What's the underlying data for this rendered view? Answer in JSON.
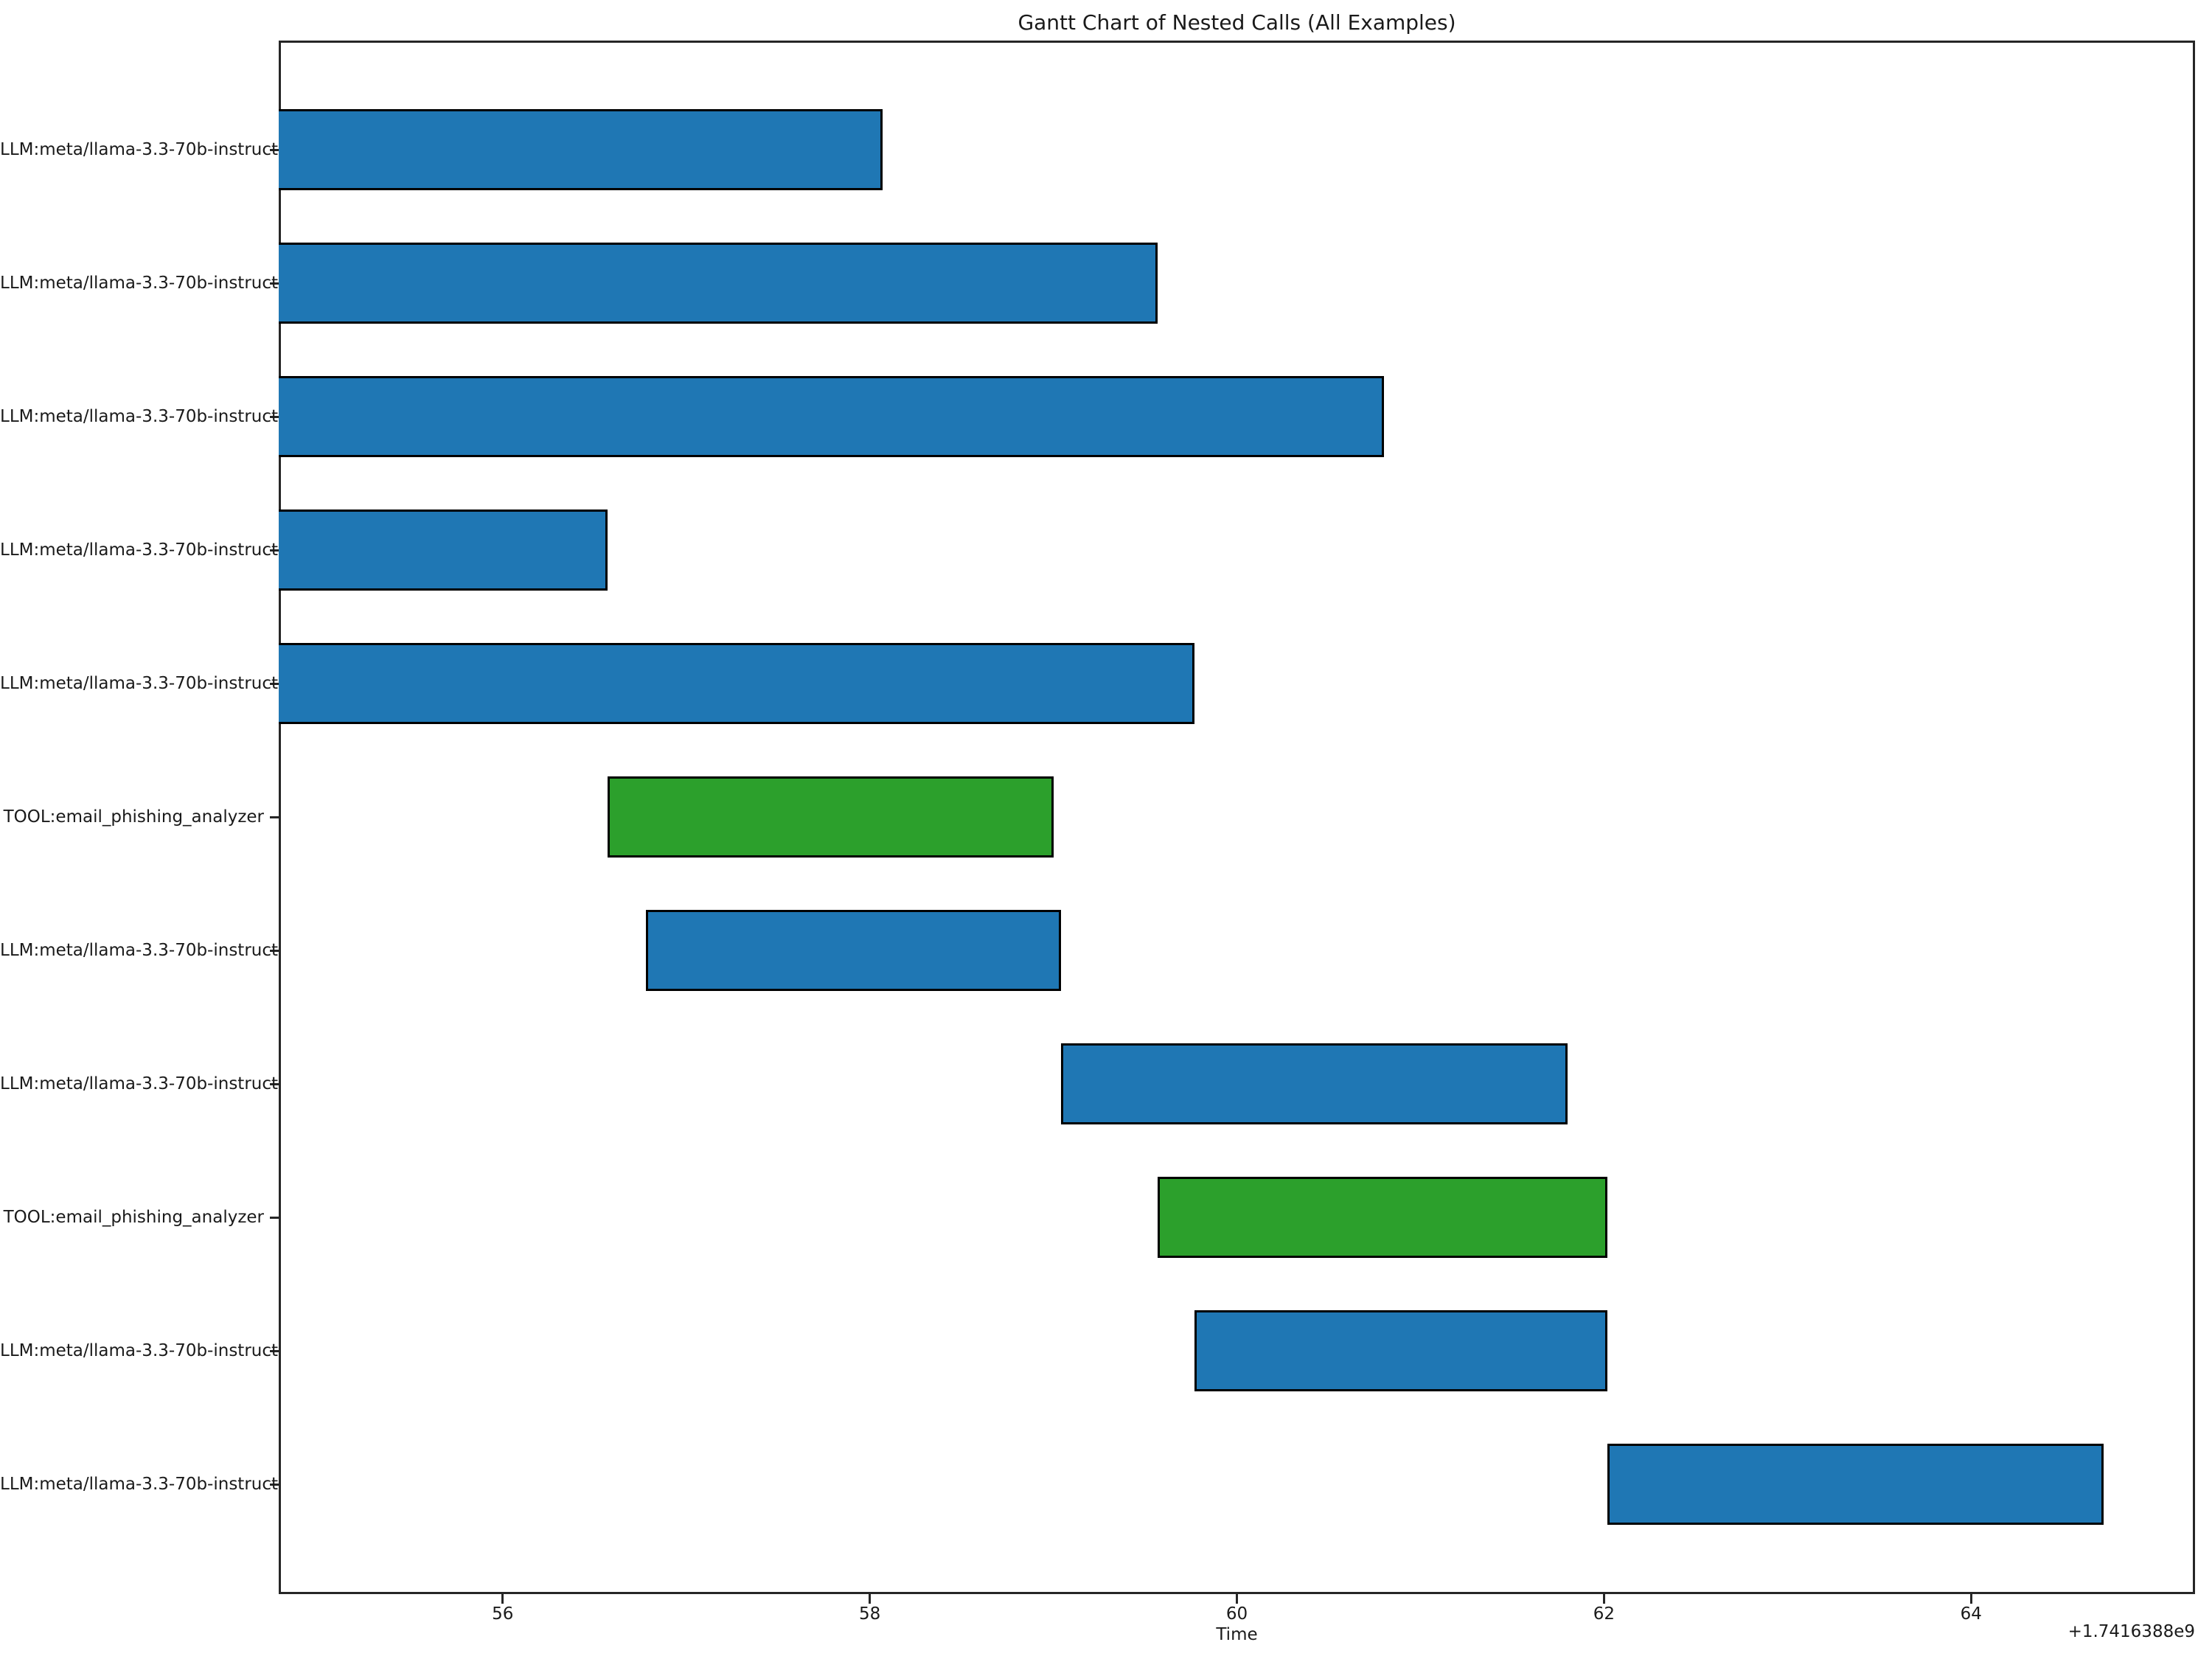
{
  "chart_data": {
    "type": "bar",
    "variant": "gantt",
    "orientation": "horizontal",
    "title": "Gantt Chart of Nested Calls (All Examples)",
    "xlabel": "Time",
    "x_offset_label": "+1.7416388e9",
    "x_ticks": [
      56,
      58,
      60,
      62,
      64
    ],
    "xlim": [
      54.78,
      65.22
    ],
    "grid": false,
    "legend_position": "none",
    "colors": {
      "llm_bar": "#1f77b4",
      "tool_bar": "#2ca02c",
      "bar_edge": "#000000",
      "axis": "#262626"
    },
    "rows": [
      {
        "label": "LLM:meta/llama-3.3-70b-instruct",
        "type": "llm",
        "start": 54.78,
        "end": 58.07,
        "clipped_start": true
      },
      {
        "label": "LLM:meta/llama-3.3-70b-instruct",
        "type": "llm",
        "start": 54.78,
        "end": 59.57,
        "clipped_start": true
      },
      {
        "label": "LLM:meta/llama-3.3-70b-instruct",
        "type": "llm",
        "start": 54.78,
        "end": 60.8,
        "clipped_start": true
      },
      {
        "label": "LLM:meta/llama-3.3-70b-instruct",
        "type": "llm",
        "start": 54.78,
        "end": 56.57,
        "clipped_start": true
      },
      {
        "label": "LLM:meta/llama-3.3-70b-instruct",
        "type": "llm",
        "start": 54.78,
        "end": 59.77,
        "clipped_start": true
      },
      {
        "label": "TOOL:email_phishing_analyzer",
        "type": "tool",
        "start": 56.57,
        "end": 59.0,
        "clipped_start": false
      },
      {
        "label": "LLM:meta/llama-3.3-70b-instruct",
        "type": "llm",
        "start": 56.78,
        "end": 59.04,
        "clipped_start": false
      },
      {
        "label": "LLM:meta/llama-3.3-70b-instruct",
        "type": "llm",
        "start": 59.04,
        "end": 61.8,
        "clipped_start": false
      },
      {
        "label": "TOOL:email_phishing_analyzer",
        "type": "tool",
        "start": 59.57,
        "end": 62.02,
        "clipped_start": false
      },
      {
        "label": "LLM:meta/llama-3.3-70b-instruct",
        "type": "llm",
        "start": 59.77,
        "end": 62.02,
        "clipped_start": false
      },
      {
        "label": "LLM:meta/llama-3.3-70b-instruct",
        "type": "llm",
        "start": 62.02,
        "end": 64.72,
        "clipped_start": false
      }
    ]
  }
}
